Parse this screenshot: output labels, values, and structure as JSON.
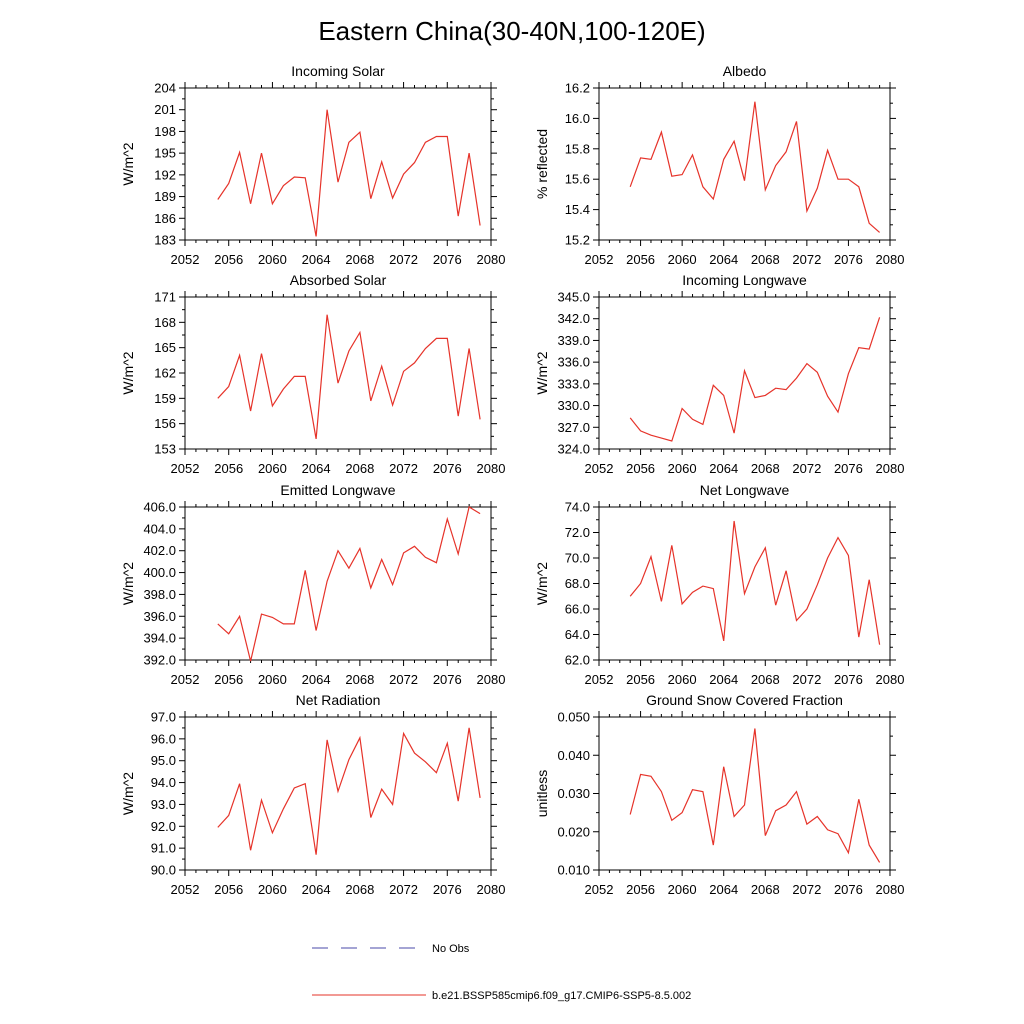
{
  "title": "Eastern China(30-40N,100-120E)",
  "legend": [
    {
      "label": "No Obs",
      "color": "#4a4aa8",
      "dash": true
    },
    {
      "label": "b.e21.BSSP585cmip6.f09_g17.CMIP6-SSP5-8.5.002",
      "color": "#e6332a",
      "dash": false
    }
  ],
  "chart_data": [
    {
      "type": "line",
      "title": "Incoming Solar",
      "ylabel": "W/m^2",
      "xlim": [
        2052,
        2080
      ],
      "xticks": [
        2052,
        2056,
        2060,
        2064,
        2068,
        2072,
        2076,
        2080
      ],
      "ylim": [
        183,
        204
      ],
      "yticks": [
        183,
        186,
        189,
        192,
        195,
        198,
        201,
        204
      ],
      "ytick_labels": [
        "183",
        "186",
        "189",
        "192",
        "195",
        "198",
        "201",
        "204"
      ],
      "series": [
        {
          "color": "#e6332a",
          "x": [
            2055,
            2056,
            2057,
            2058,
            2059,
            2060,
            2061,
            2062,
            2063,
            2064,
            2065,
            2066,
            2067,
            2068,
            2069,
            2070,
            2071,
            2072,
            2073,
            2074,
            2075,
            2076,
            2077,
            2078,
            2079
          ],
          "values": [
            188.6,
            190.8,
            195.1,
            188.0,
            195.0,
            188.0,
            190.5,
            191.7,
            191.6,
            183.5,
            201.0,
            191.0,
            196.5,
            197.9,
            188.7,
            193.8,
            188.8,
            192.1,
            193.7,
            196.5,
            197.3,
            197.3,
            186.3,
            195.0,
            185.0
          ]
        }
      ]
    },
    {
      "type": "line",
      "title": "Albedo",
      "ylabel": "% reflected",
      "xlim": [
        2052,
        2080
      ],
      "xticks": [
        2052,
        2056,
        2060,
        2064,
        2068,
        2072,
        2076,
        2080
      ],
      "ylim": [
        15.2,
        16.2
      ],
      "yticks": [
        15.2,
        15.4,
        15.6,
        15.8,
        16.0,
        16.2
      ],
      "ytick_labels": [
        "15.2",
        "15.4",
        "15.6",
        "15.8",
        "16.0",
        "16.2"
      ],
      "series": [
        {
          "color": "#e6332a",
          "x": [
            2055,
            2056,
            2057,
            2058,
            2059,
            2060,
            2061,
            2062,
            2063,
            2064,
            2065,
            2066,
            2067,
            2068,
            2069,
            2070,
            2071,
            2072,
            2073,
            2074,
            2075,
            2076,
            2077,
            2078,
            2079
          ],
          "values": [
            15.55,
            15.74,
            15.73,
            15.91,
            15.62,
            15.63,
            15.76,
            15.55,
            15.47,
            15.73,
            15.85,
            15.59,
            16.11,
            15.53,
            15.69,
            15.78,
            15.98,
            15.39,
            15.54,
            15.79,
            15.6,
            15.6,
            15.55,
            15.31,
            15.25
          ]
        }
      ]
    },
    {
      "type": "line",
      "title": "Absorbed Solar",
      "ylabel": "W/m^2",
      "xlim": [
        2052,
        2080
      ],
      "xticks": [
        2052,
        2056,
        2060,
        2064,
        2068,
        2072,
        2076,
        2080
      ],
      "ylim": [
        153,
        171
      ],
      "yticks": [
        153,
        156,
        159,
        162,
        165,
        168,
        171
      ],
      "ytick_labels": [
        "153",
        "156",
        "159",
        "162",
        "165",
        "168",
        "171"
      ],
      "series": [
        {
          "color": "#e6332a",
          "x": [
            2055,
            2056,
            2057,
            2058,
            2059,
            2060,
            2061,
            2062,
            2063,
            2064,
            2065,
            2066,
            2067,
            2068,
            2069,
            2070,
            2071,
            2072,
            2073,
            2074,
            2075,
            2076,
            2077,
            2078,
            2079
          ],
          "values": [
            159.0,
            160.4,
            164.1,
            157.5,
            164.3,
            158.1,
            160.1,
            161.6,
            161.6,
            154.2,
            168.9,
            160.8,
            164.6,
            166.8,
            158.7,
            162.8,
            158.2,
            162.2,
            163.2,
            164.9,
            166.1,
            166.1,
            156.9,
            164.9,
            156.5
          ]
        }
      ]
    },
    {
      "type": "line",
      "title": "Incoming Longwave",
      "ylabel": "W/m^2",
      "xlim": [
        2052,
        2080
      ],
      "xticks": [
        2052,
        2056,
        2060,
        2064,
        2068,
        2072,
        2076,
        2080
      ],
      "ylim": [
        324,
        345
      ],
      "yticks": [
        324,
        327,
        330,
        333,
        336,
        339,
        342,
        345
      ],
      "ytick_labels": [
        "324.0",
        "327.0",
        "330.0",
        "333.0",
        "336.0",
        "339.0",
        "342.0",
        "345.0"
      ],
      "series": [
        {
          "color": "#e6332a",
          "x": [
            2055,
            2056,
            2057,
            2058,
            2059,
            2060,
            2061,
            2062,
            2063,
            2064,
            2065,
            2066,
            2067,
            2068,
            2069,
            2070,
            2071,
            2072,
            2073,
            2074,
            2075,
            2076,
            2077,
            2078,
            2079
          ],
          "values": [
            328.3,
            326.5,
            325.9,
            325.5,
            325.1,
            329.6,
            328.1,
            327.4,
            332.8,
            331.4,
            326.2,
            334.8,
            331.1,
            331.4,
            332.4,
            332.2,
            333.8,
            335.8,
            334.6,
            331.3,
            329.1,
            334.4,
            338.0,
            337.8,
            342.2
          ]
        }
      ]
    },
    {
      "type": "line",
      "title": "Emitted Longwave",
      "ylabel": "W/m^2",
      "xlim": [
        2052,
        2080
      ],
      "xticks": [
        2052,
        2056,
        2060,
        2064,
        2068,
        2072,
        2076,
        2080
      ],
      "ylim": [
        392,
        406
      ],
      "yticks": [
        392,
        394,
        396,
        398,
        400,
        402,
        404,
        406
      ],
      "ytick_labels": [
        "392.0",
        "394.0",
        "396.0",
        "398.0",
        "400.0",
        "402.0",
        "404.0",
        "406.0"
      ],
      "series": [
        {
          "color": "#e6332a",
          "x": [
            2055,
            2056,
            2057,
            2058,
            2059,
            2060,
            2061,
            2062,
            2063,
            2064,
            2065,
            2066,
            2067,
            2068,
            2069,
            2070,
            2071,
            2072,
            2073,
            2074,
            2075,
            2076,
            2077,
            2078,
            2079
          ],
          "values": [
            395.3,
            394.4,
            396.0,
            391.9,
            396.2,
            395.9,
            395.3,
            395.3,
            400.2,
            394.7,
            399.2,
            402.0,
            400.4,
            402.2,
            398.6,
            401.2,
            398.9,
            401.8,
            402.4,
            401.4,
            400.9,
            404.9,
            401.7,
            406.0,
            405.4
          ]
        }
      ]
    },
    {
      "type": "line",
      "title": "Net Longwave",
      "ylabel": "W/m^2",
      "xlim": [
        2052,
        2080
      ],
      "xticks": [
        2052,
        2056,
        2060,
        2064,
        2068,
        2072,
        2076,
        2080
      ],
      "ylim": [
        62,
        74
      ],
      "yticks": [
        62,
        64,
        66,
        68,
        70,
        72,
        74
      ],
      "ytick_labels": [
        "62.0",
        "64.0",
        "66.0",
        "68.0",
        "70.0",
        "72.0",
        "74.0"
      ],
      "series": [
        {
          "color": "#e6332a",
          "x": [
            2055,
            2056,
            2057,
            2058,
            2059,
            2060,
            2061,
            2062,
            2063,
            2064,
            2065,
            2066,
            2067,
            2068,
            2069,
            2070,
            2071,
            2072,
            2073,
            2074,
            2075,
            2076,
            2077,
            2078,
            2079
          ],
          "values": [
            67.0,
            68.0,
            70.1,
            66.6,
            71.0,
            66.4,
            67.3,
            67.8,
            67.6,
            63.5,
            72.9,
            67.2,
            69.3,
            70.8,
            66.3,
            69.0,
            65.1,
            66.0,
            67.9,
            70.0,
            71.6,
            70.2,
            63.8,
            68.3,
            63.2
          ]
        }
      ]
    },
    {
      "type": "line",
      "title": "Net Radiation",
      "ylabel": "W/m^2",
      "xlim": [
        2052,
        2080
      ],
      "xticks": [
        2052,
        2056,
        2060,
        2064,
        2068,
        2072,
        2076,
        2080
      ],
      "ylim": [
        90,
        97
      ],
      "yticks": [
        90,
        91,
        92,
        93,
        94,
        95,
        96,
        97
      ],
      "ytick_labels": [
        "90.0",
        "91.0",
        "92.0",
        "93.0",
        "94.0",
        "95.0",
        "96.0",
        "97.0"
      ],
      "series": [
        {
          "color": "#e6332a",
          "x": [
            2055,
            2056,
            2057,
            2058,
            2059,
            2060,
            2061,
            2062,
            2063,
            2064,
            2065,
            2066,
            2067,
            2068,
            2069,
            2070,
            2071,
            2072,
            2073,
            2074,
            2075,
            2076,
            2077,
            2078,
            2079
          ],
          "values": [
            91.95,
            92.5,
            93.95,
            90.9,
            93.2,
            91.7,
            92.8,
            93.75,
            93.95,
            90.7,
            95.95,
            93.6,
            95.05,
            96.05,
            92.4,
            93.7,
            93.0,
            96.25,
            95.35,
            94.95,
            94.45,
            95.8,
            93.15,
            96.5,
            93.3
          ]
        }
      ]
    },
    {
      "type": "line",
      "title": "Ground Snow Covered Fraction",
      "ylabel": "unitless",
      "xlim": [
        2052,
        2080
      ],
      "xticks": [
        2052,
        2056,
        2060,
        2064,
        2068,
        2072,
        2076,
        2080
      ],
      "ylim": [
        0.01,
        0.05
      ],
      "yticks": [
        0.01,
        0.02,
        0.03,
        0.04,
        0.05
      ],
      "ytick_labels": [
        "0.010",
        "0.020",
        "0.030",
        "0.040",
        "0.050"
      ],
      "series": [
        {
          "color": "#e6332a",
          "x": [
            2055,
            2056,
            2057,
            2058,
            2059,
            2060,
            2061,
            2062,
            2063,
            2064,
            2065,
            2066,
            2067,
            2068,
            2069,
            2070,
            2071,
            2072,
            2073,
            2074,
            2075,
            2076,
            2077,
            2078,
            2079
          ],
          "values": [
            0.0245,
            0.035,
            0.0345,
            0.0305,
            0.023,
            0.025,
            0.031,
            0.0305,
            0.0165,
            0.037,
            0.024,
            0.027,
            0.047,
            0.019,
            0.0255,
            0.027,
            0.0305,
            0.022,
            0.024,
            0.0205,
            0.0195,
            0.0145,
            0.0285,
            0.0165,
            0.012
          ]
        }
      ]
    }
  ]
}
